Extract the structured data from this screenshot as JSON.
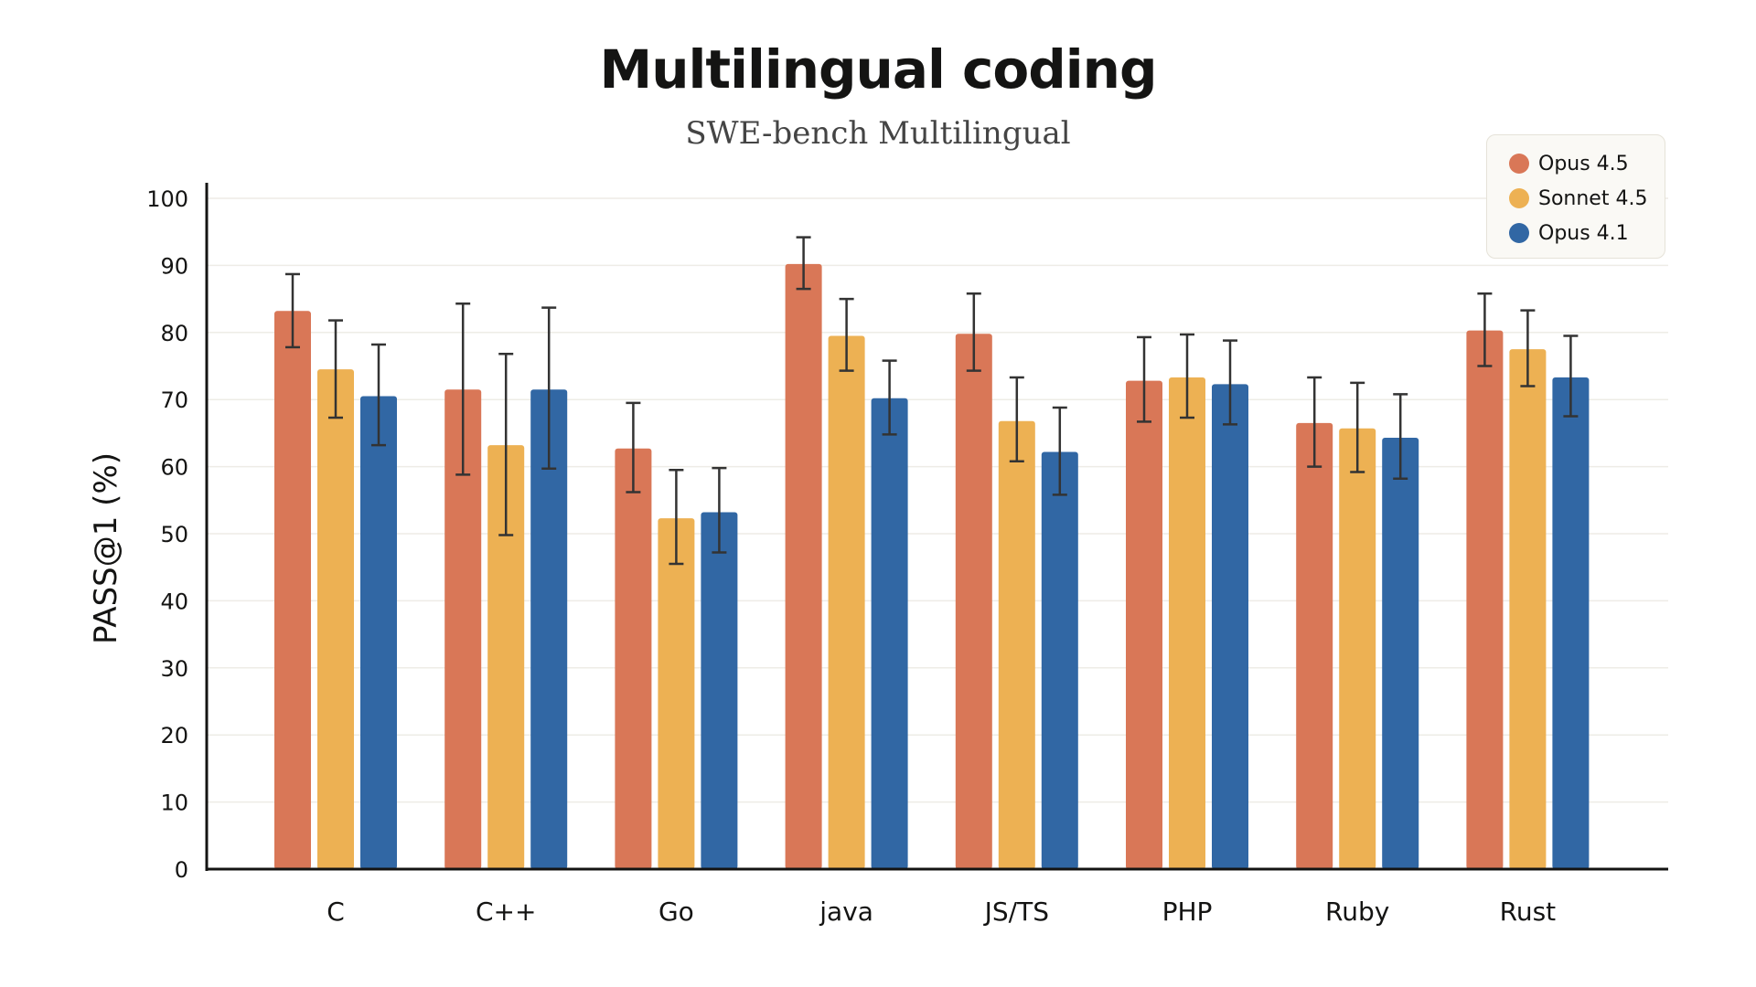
{
  "chart_data": {
    "type": "bar",
    "title": "Multilingual coding",
    "subtitle": "SWE-bench Multilingual",
    "xlabel": "",
    "ylabel": "PASS@1 (%)",
    "ylim": [
      0,
      100
    ],
    "yticks": [
      0,
      10,
      20,
      30,
      40,
      50,
      60,
      70,
      80,
      90,
      100
    ],
    "grid": true,
    "legend_position": "top-right",
    "categories": [
      "C",
      "C++",
      "Go",
      "java",
      "JS/TS",
      "PHP",
      "Ruby",
      "Rust"
    ],
    "series": [
      {
        "name": "Opus 4.5",
        "color": "#D97757",
        "values": [
          83.2,
          71.5,
          62.7,
          90.2,
          79.8,
          72.8,
          66.5,
          80.3
        ],
        "error_low": [
          77.8,
          58.8,
          56.2,
          86.5,
          74.3,
          66.7,
          60.0,
          75.0
        ],
        "error_high": [
          88.7,
          84.3,
          69.5,
          94.2,
          85.8,
          79.3,
          73.3,
          85.8
        ]
      },
      {
        "name": "Sonnet 4.5",
        "color": "#EDB153",
        "values": [
          74.5,
          63.2,
          52.3,
          79.5,
          66.8,
          73.3,
          65.7,
          77.5
        ],
        "error_low": [
          67.3,
          49.8,
          45.5,
          74.3,
          60.8,
          67.3,
          59.2,
          72.0
        ],
        "error_high": [
          81.8,
          76.8,
          59.5,
          85.0,
          73.3,
          79.7,
          72.5,
          83.3
        ]
      },
      {
        "name": "Opus 4.1",
        "color": "#3167A4",
        "values": [
          70.5,
          71.5,
          53.2,
          70.2,
          62.2,
          72.3,
          64.3,
          73.3
        ],
        "error_low": [
          63.2,
          59.7,
          47.2,
          64.8,
          55.8,
          66.3,
          58.2,
          67.5
        ],
        "error_high": [
          78.2,
          83.7,
          59.8,
          75.8,
          68.8,
          78.8,
          70.8,
          79.5
        ]
      }
    ]
  }
}
